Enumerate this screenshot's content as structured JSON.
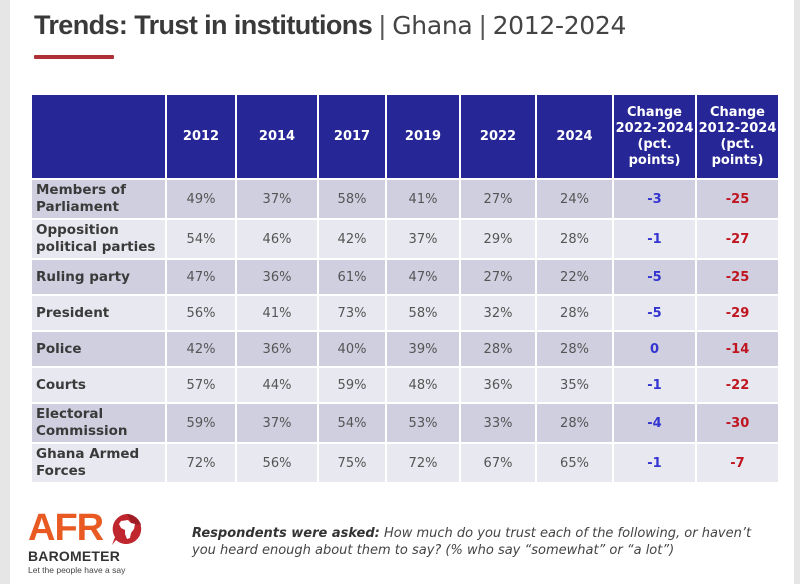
{
  "title": {
    "main": "Trends: Trust in institutions",
    "separator": "|",
    "country": "Ghana",
    "period": "2012-2024"
  },
  "colors": {
    "accent": "#b03038",
    "header_bg": "#262696",
    "change_short": "#3434d0",
    "change_long": "#c0141e"
  },
  "table": {
    "headers": [
      "",
      "2012",
      "2014",
      "2017",
      "2019",
      "2022",
      "2024",
      "Change 2022-2024 (pct. points)",
      "Change 2012-2024 (pct. points)"
    ],
    "rows": [
      {
        "institution": "Members of Parliament",
        "values": [
          "49%",
          "37%",
          "58%",
          "41%",
          "27%",
          "24%"
        ],
        "change_2022_2024": "-3",
        "change_2012_2024": "-25"
      },
      {
        "institution": "Opposition political parties",
        "values": [
          "54%",
          "46%",
          "42%",
          "37%",
          "29%",
          "28%"
        ],
        "change_2022_2024": "-1",
        "change_2012_2024": "-27"
      },
      {
        "institution": "Ruling party",
        "values": [
          "47%",
          "36%",
          "61%",
          "47%",
          "27%",
          "22%"
        ],
        "change_2022_2024": "-5",
        "change_2012_2024": "-25"
      },
      {
        "institution": "President",
        "values": [
          "56%",
          "41%",
          "73%",
          "58%",
          "32%",
          "28%"
        ],
        "change_2022_2024": "-5",
        "change_2012_2024": "-29"
      },
      {
        "institution": "Police",
        "values": [
          "42%",
          "36%",
          "40%",
          "39%",
          "28%",
          "28%"
        ],
        "change_2022_2024": "0",
        "change_2012_2024": "-14"
      },
      {
        "institution": "Courts",
        "values": [
          "57%",
          "44%",
          "59%",
          "48%",
          "36%",
          "35%"
        ],
        "change_2022_2024": "-1",
        "change_2012_2024": "-22"
      },
      {
        "institution": "Electoral Commission",
        "values": [
          "59%",
          "37%",
          "54%",
          "53%",
          "33%",
          "28%"
        ],
        "change_2022_2024": "-4",
        "change_2012_2024": "-30"
      },
      {
        "institution": "Ghana Armed Forces",
        "values": [
          "72%",
          "56%",
          "75%",
          "72%",
          "67%",
          "65%"
        ],
        "change_2022_2024": "-1",
        "change_2012_2024": "-7"
      }
    ]
  },
  "logo": {
    "word": "AFR",
    "subword": "BAROMETER",
    "tagline": "Let the people have a say"
  },
  "note": {
    "lead": "Respondents were asked:",
    "text": " How much do you trust each of the following, or haven’t you heard enough about them to say? (% who say “somewhat” or “a lot”)"
  }
}
